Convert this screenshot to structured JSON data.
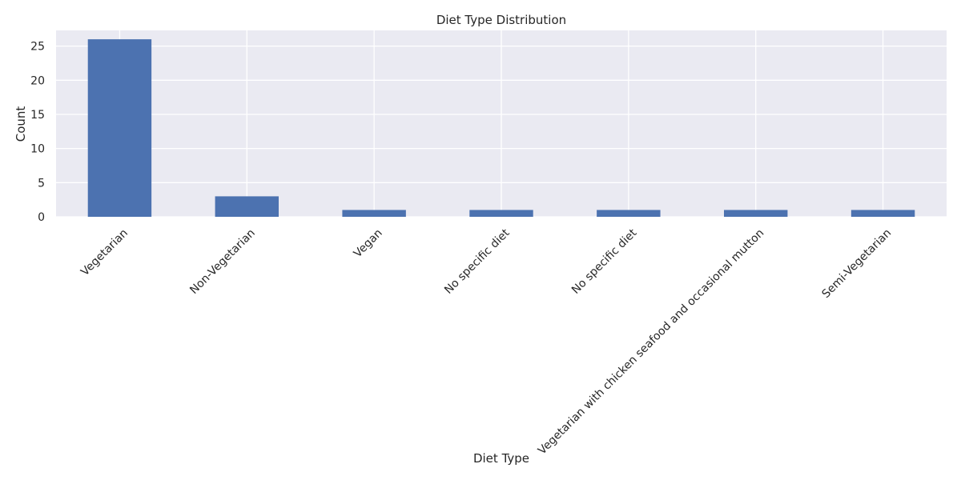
{
  "chart_data": {
    "type": "bar",
    "title": "Diet Type Distribution",
    "xlabel": "Diet Type",
    "ylabel": "Count",
    "categories": [
      "Vegetarian",
      "Non-Vegetarian",
      "Vegan",
      "No specific diet",
      "No specific diet",
      "Vegetarian with chicken seafood and occasional mutton",
      "Semi-Vegetarian"
    ],
    "values": [
      26,
      3,
      1,
      1,
      1,
      1,
      1
    ],
    "ylim": [
      0,
      27.3
    ],
    "yticks": [
      0,
      5,
      10,
      15,
      20,
      25
    ],
    "grid": true,
    "legend": "none",
    "colors": {
      "bar": "#4c72b0",
      "plot_background": "#eaeaf2",
      "grid": "#ffffff"
    }
  }
}
